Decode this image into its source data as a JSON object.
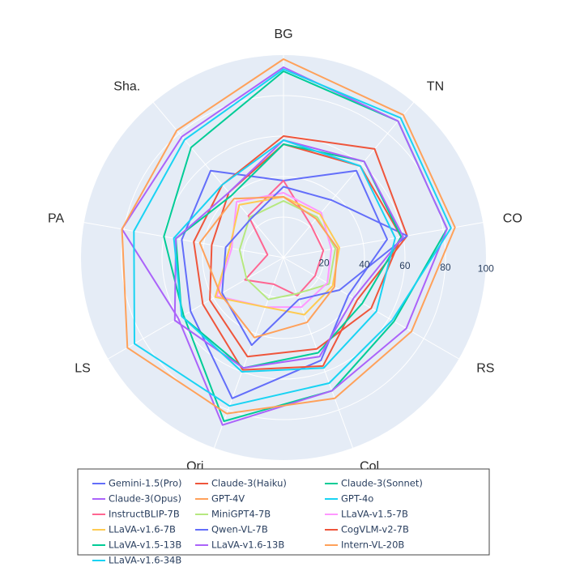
{
  "chart_data": {
    "type": "radar",
    "axes": [
      "BG",
      "TN",
      "CO",
      "RS",
      "Col.",
      "Ori.",
      "LS",
      "PA",
      "Sha."
    ],
    "radial_range": [
      0,
      100
    ],
    "radial_ticks": [
      "20",
      "40",
      "60",
      "80",
      "100"
    ],
    "grid": true,
    "legend_position": "bottom",
    "series": [
      {
        "name": "Gemini-1.5(Pro)",
        "color": "#636efa",
        "values": [
          38,
          56,
          52,
          37,
          54,
          74,
          53,
          51,
          56
        ]
      },
      {
        "name": "Claude-3(Haiku)",
        "color": "#ef553b",
        "values": [
          60,
          70,
          62,
          42,
          57,
          59,
          46,
          45,
          47
        ]
      },
      {
        "name": "Claude-3(Sonnet)",
        "color": "#00cc96",
        "values": [
          92,
          88,
          82,
          63,
          70,
          86,
          57,
          60,
          71
        ]
      },
      {
        "name": "Claude-3(Opus)",
        "color": "#ab63fa",
        "values": [
          94,
          88,
          82,
          70,
          70,
          88,
          60,
          81,
          78
        ]
      },
      {
        "name": "GPT-4V",
        "color": "#ffa15a",
        "values": [
          98,
          92,
          86,
          73,
          74,
          82,
          89,
          81,
          82
        ]
      },
      {
        "name": "GPT-4o",
        "color": "#19d3f3",
        "values": [
          93,
          90,
          84,
          62,
          66,
          78,
          85,
          75,
          76
        ]
      },
      {
        "name": "InstructBLIP-7B",
        "color": "#ff6692",
        "values": [
          38,
          21,
          20,
          18,
          20,
          14,
          22,
          8,
          27
        ]
      },
      {
        "name": "MiniGPT4-7B",
        "color": "#b6e880",
        "values": [
          28,
          26,
          26,
          26,
          19,
          22,
          21,
          22,
          26
        ]
      },
      {
        "name": "LLaVA-v1.5-7B",
        "color": "#ff97ff",
        "values": [
          32,
          29,
          24,
          25,
          26,
          26,
          38,
          26,
          36
        ]
      },
      {
        "name": "LLaVA-v1.6-7B",
        "color": "#fecb52",
        "values": [
          30,
          28,
          28,
          28,
          30,
          26,
          39,
          27,
          34
        ]
      },
      {
        "name": "Qwen-VL-7B",
        "color": "#636efa",
        "values": [
          35,
          37,
          62,
          32,
          22,
          46,
          35,
          29,
          25
        ]
      },
      {
        "name": "CogVLM-v2-7B",
        "color": "#ef553b",
        "values": [
          56,
          59,
          59,
          50,
          48,
          52,
          42,
          36,
          42
        ]
      },
      {
        "name": "LLaVA-v1.5-13B",
        "color": "#00cc96",
        "values": [
          56,
          62,
          59,
          45,
          50,
          58,
          58,
          54,
          40
        ]
      },
      {
        "name": "LLaVA-v1.6-13B",
        "color": "#ab63fa",
        "values": [
          58,
          62,
          60,
          40,
          52,
          58,
          62,
          54,
          42
        ]
      },
      {
        "name": "Intern-VL-20B",
        "color": "#ffa15a",
        "values": [
          30,
          25,
          27,
          29,
          34,
          42,
          36,
          42,
          38
        ]
      },
      {
        "name": "LLaVA-v1.6-34B",
        "color": "#19d3f3",
        "values": [
          58,
          59,
          56,
          53,
          58,
          60,
          58,
          55,
          47
        ]
      }
    ]
  }
}
